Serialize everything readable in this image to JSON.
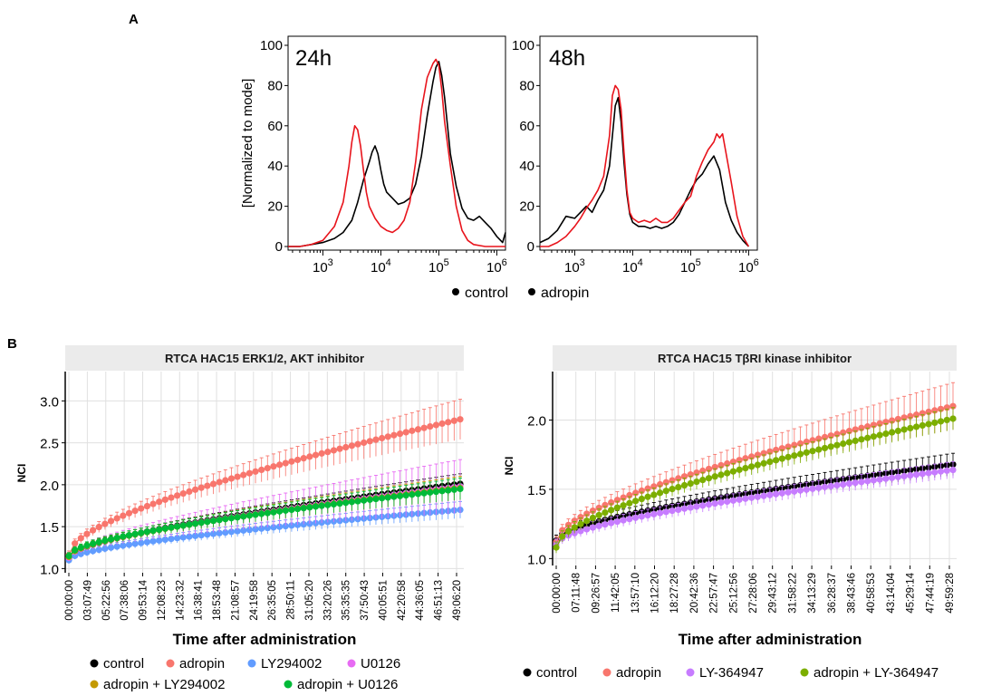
{
  "panel_labels": {
    "a": "A",
    "b": "B"
  },
  "colors": {
    "control": "#000000",
    "adropin": "#f8766d",
    "adropin_hist": "#e8141c",
    "ly294002": "#619cff",
    "u0126": "#e76bf3",
    "adropin_ly294002": "#c49a00",
    "adropin_u0126": "#00ba38",
    "ly364947": "#c77cff",
    "adropin_ly364947": "#7cae00"
  },
  "chart_data": [
    {
      "type": "line",
      "panel": "A",
      "label": "24h",
      "ylabel": "[Normalized to mode]",
      "ylim": [
        0,
        100
      ],
      "yticks": [
        "0",
        "20",
        "40",
        "60",
        "80",
        "100"
      ],
      "xscale": "log",
      "xlim_log10": [
        2.4,
        6.15
      ],
      "xticks": [
        {
          "base": "10",
          "exp": "3",
          "log10": 3
        },
        {
          "base": "10",
          "exp": "4",
          "log10": 4
        },
        {
          "base": "10",
          "exp": "5",
          "log10": 5
        },
        {
          "base": "10",
          "exp": "6",
          "log10": 6
        }
      ],
      "series": [
        {
          "name": "control",
          "color": "#000000",
          "x_log10": [
            2.4,
            2.6,
            2.8,
            3.0,
            3.2,
            3.35,
            3.5,
            3.6,
            3.7,
            3.8,
            3.85,
            3.9,
            3.95,
            4.0,
            4.05,
            4.1,
            4.2,
            4.3,
            4.4,
            4.5,
            4.6,
            4.7,
            4.8,
            4.9,
            4.95,
            5.0,
            5.05,
            5.1,
            5.15,
            5.2,
            5.3,
            5.4,
            5.5,
            5.6,
            5.7,
            5.8,
            5.9,
            6.0,
            6.1,
            6.15
          ],
          "y": [
            0,
            0,
            1,
            2,
            4,
            7,
            13,
            22,
            33,
            42,
            47,
            50,
            46,
            38,
            31,
            27,
            24,
            21,
            22,
            24,
            31,
            45,
            65,
            82,
            89,
            92,
            85,
            74,
            60,
            46,
            30,
            19,
            14,
            13,
            15,
            12,
            9,
            5,
            2,
            7
          ]
        },
        {
          "name": "adropin",
          "color": "#e8141c",
          "x_log10": [
            2.4,
            2.6,
            2.8,
            3.0,
            3.2,
            3.35,
            3.45,
            3.5,
            3.55,
            3.6,
            3.65,
            3.7,
            3.75,
            3.8,
            3.9,
            4.0,
            4.1,
            4.2,
            4.3,
            4.4,
            4.5,
            4.6,
            4.7,
            4.8,
            4.9,
            4.95,
            5.0,
            5.05,
            5.1,
            5.2,
            5.3,
            5.4,
            5.5,
            5.6,
            5.8,
            6.0,
            6.15
          ],
          "y": [
            0,
            0,
            1,
            3,
            10,
            22,
            40,
            52,
            60,
            58,
            50,
            38,
            27,
            20,
            14,
            10,
            8,
            7,
            9,
            13,
            22,
            42,
            68,
            84,
            91,
            93,
            90,
            78,
            62,
            40,
            20,
            8,
            3,
            1,
            0,
            0,
            0
          ]
        }
      ]
    },
    {
      "type": "line",
      "panel": "A",
      "label": "48h",
      "ylim": [
        0,
        100
      ],
      "yticks": [
        "0",
        "20",
        "40",
        "60",
        "80",
        "100"
      ],
      "xscale": "log",
      "xlim_log10": [
        2.4,
        6.15
      ],
      "xticks": [
        {
          "base": "10",
          "exp": "3",
          "log10": 3
        },
        {
          "base": "10",
          "exp": "4",
          "log10": 4
        },
        {
          "base": "10",
          "exp": "5",
          "log10": 5
        },
        {
          "base": "10",
          "exp": "6",
          "log10": 6
        }
      ],
      "series": [
        {
          "name": "control",
          "color": "#000000",
          "x_log10": [
            2.4,
            2.55,
            2.7,
            2.85,
            3.0,
            3.1,
            3.2,
            3.3,
            3.4,
            3.5,
            3.6,
            3.65,
            3.7,
            3.75,
            3.8,
            3.85,
            3.9,
            3.95,
            4.0,
            4.1,
            4.2,
            4.3,
            4.4,
            4.5,
            4.6,
            4.7,
            4.8,
            4.9,
            5.0,
            5.1,
            5.2,
            5.3,
            5.4,
            5.5,
            5.55,
            5.6,
            5.7,
            5.8,
            5.9,
            6.0
          ],
          "y": [
            2,
            4,
            8,
            15,
            14,
            17,
            20,
            17,
            23,
            28,
            40,
            55,
            70,
            74,
            62,
            42,
            26,
            16,
            12,
            10,
            10,
            9,
            10,
            9,
            10,
            12,
            16,
            22,
            28,
            33,
            36,
            41,
            45,
            38,
            30,
            22,
            13,
            7,
            3,
            0
          ]
        },
        {
          "name": "adropin",
          "color": "#e8141c",
          "x_log10": [
            2.4,
            2.55,
            2.7,
            2.85,
            3.0,
            3.1,
            3.2,
            3.3,
            3.4,
            3.5,
            3.6,
            3.65,
            3.7,
            3.75,
            3.8,
            3.85,
            3.9,
            3.95,
            4.0,
            4.1,
            4.2,
            4.3,
            4.4,
            4.5,
            4.6,
            4.7,
            4.8,
            4.9,
            5.0,
            5.05,
            5.1,
            5.2,
            5.3,
            5.4,
            5.45,
            5.5,
            5.55,
            5.6,
            5.7,
            5.8,
            5.9,
            6.0
          ],
          "y": [
            0,
            0,
            2,
            5,
            10,
            14,
            19,
            23,
            28,
            35,
            55,
            75,
            80,
            78,
            68,
            47,
            28,
            17,
            14,
            12,
            13,
            12,
            14,
            12,
            12,
            14,
            18,
            22,
            25,
            30,
            35,
            42,
            48,
            52,
            56,
            54,
            56,
            48,
            32,
            15,
            5,
            0
          ]
        }
      ]
    },
    {
      "type": "line",
      "panel": "B",
      "title": "RTCA HAC15 ERK1/2, AKT inhibitor",
      "xlabel": "Time after administration",
      "ylabel": "NCI",
      "ylim": [
        0.95,
        3.35
      ],
      "yticks": [
        "1.0",
        "1.5",
        "2.0",
        "2.5",
        "3.0"
      ],
      "n_points": 66,
      "xtick_labels": [
        "00:00:00",
        "03:07:49",
        "05:22:56",
        "07:38:06",
        "09:53:14",
        "12:08:23",
        "14:23:32",
        "16:38:41",
        "18:53:48",
        "21:08:57",
        "24:19:58",
        "26:35:05",
        "28:50:11",
        "31:05:20",
        "33:20:26",
        "35:35:35",
        "37:50:43",
        "40:05:51",
        "42:20:58",
        "44:36:05",
        "46:51:13",
        "49:06:20"
      ],
      "series": [
        {
          "name": "control",
          "color": "#000000",
          "start": 1.12,
          "end": 2.01,
          "err_start": 0.04,
          "err_end": 0.12
        },
        {
          "name": "adropin",
          "color": "#f8766d",
          "start": 1.16,
          "end": 2.78,
          "err_start": 0.05,
          "err_end": 0.24
        },
        {
          "name": "LY294002",
          "color": "#619cff",
          "start": 1.1,
          "end": 1.7,
          "err_start": 0.04,
          "err_end": 0.1
        },
        {
          "name": "U0126",
          "color": "#e76bf3",
          "start": 1.13,
          "end": 1.98,
          "err_start": 0.04,
          "err_end": 0.32
        },
        {
          "name": "adropin + LY294002",
          "color": "#c49a00",
          "start": 1.14,
          "end": 1.96,
          "err_start": 0.04,
          "err_end": 0.14
        },
        {
          "name": "adropin + U0126",
          "color": "#00ba38",
          "start": 1.15,
          "end": 1.95,
          "err_start": 0.04,
          "err_end": 0.13
        }
      ],
      "legend": [
        "control",
        "adropin",
        "LY294002",
        "U0126",
        "adropin + LY294002",
        "adropin + U0126"
      ]
    },
    {
      "type": "line",
      "panel": "B",
      "title": "RTCA HAC15 TβRI kinase inhibitor",
      "xlabel": "Time after administration",
      "ylabel": "NCI",
      "ylim": [
        0.95,
        2.35
      ],
      "yticks": [
        "1.0",
        "1.5",
        "2.0"
      ],
      "n_points": 66,
      "xtick_labels": [
        "00:00:00",
        "07:11:48",
        "09:26:57",
        "11:42:05",
        "13:57:10",
        "16:12:20",
        "18:27:28",
        "20:42:36",
        "22:57:47",
        "25:12:56",
        "27:28:06",
        "29:43:12",
        "31:58:22",
        "34:13:29",
        "36:28:37",
        "38:43:46",
        "40:58:53",
        "43:14:04",
        "45:29:14",
        "47:44:19",
        "49:59:28"
      ],
      "series": [
        {
          "name": "control",
          "color": "#000000",
          "start": 1.13,
          "end": 1.68,
          "err_start": 0.04,
          "err_end": 0.08
        },
        {
          "name": "adropin",
          "color": "#f8766d",
          "start": 1.12,
          "end": 2.1,
          "err_start": 0.04,
          "err_end": 0.17
        },
        {
          "name": "LY-364947",
          "color": "#c77cff",
          "start": 1.1,
          "end": 1.64,
          "err_start": 0.04,
          "err_end": 0.06
        },
        {
          "name": "adropin + LY-364947",
          "color": "#7cae00",
          "start": 1.08,
          "end": 2.01,
          "err_start": 0.04,
          "err_end": 0.08
        }
      ],
      "legend": [
        "control",
        "adropin",
        "LY-364947",
        "adropin + LY-364947"
      ]
    }
  ],
  "legend_a": [
    "control",
    "adropin"
  ]
}
